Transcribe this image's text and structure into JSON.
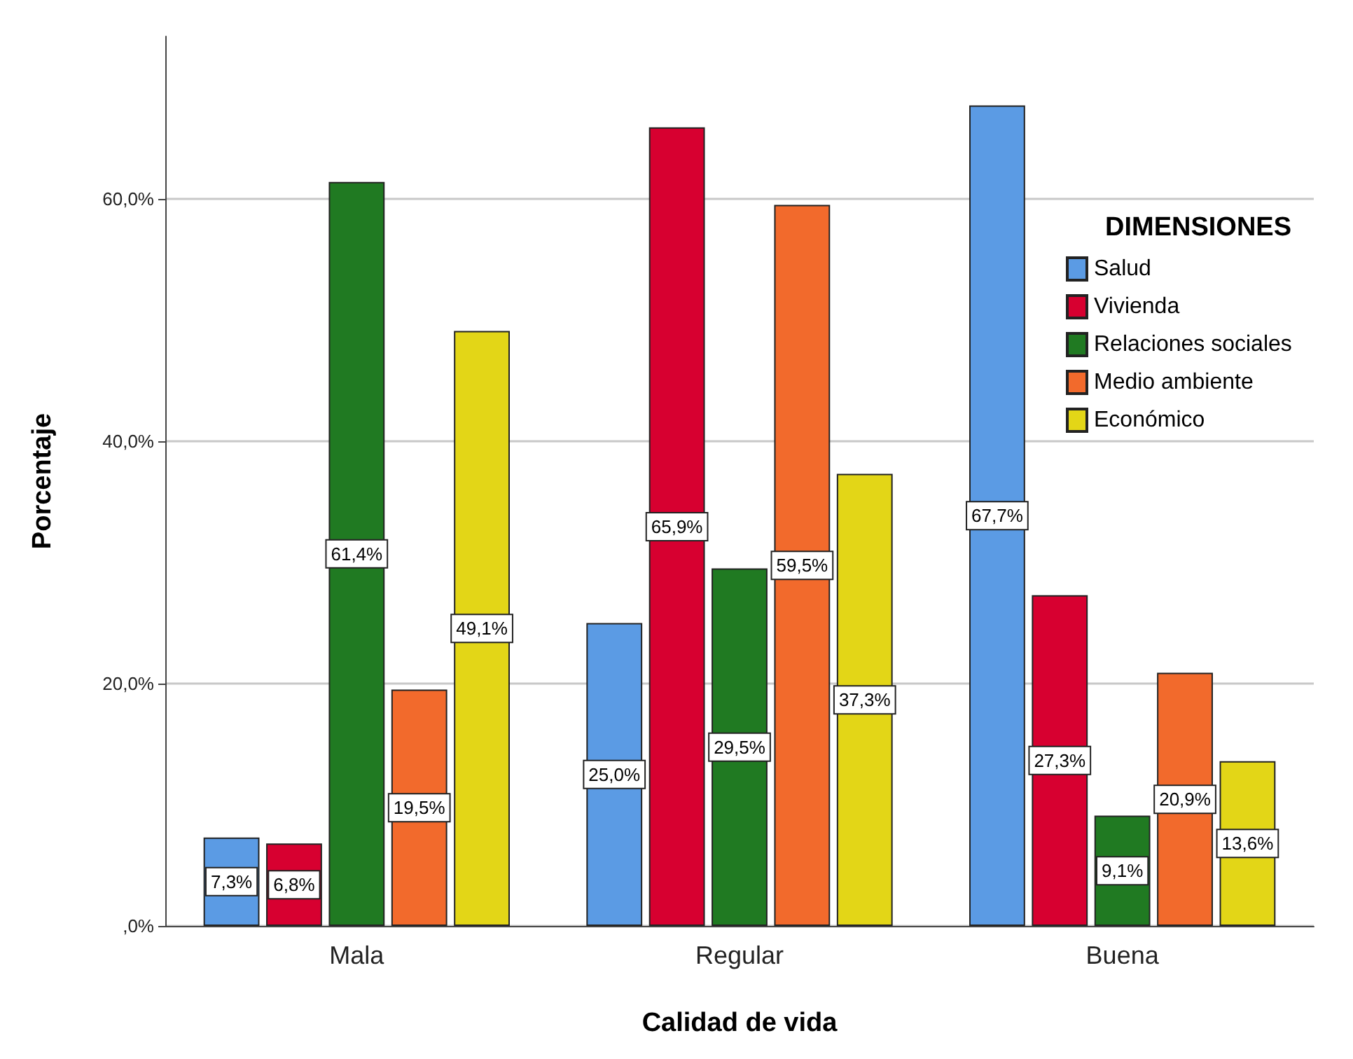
{
  "chart_data": {
    "type": "bar",
    "xlabel": "Calidad de vida",
    "ylabel": "Porcentaje",
    "legend_title": "DIMENSIONES",
    "categories": [
      "Mala",
      "Regular",
      "Buena"
    ],
    "series": [
      {
        "name": "Salud",
        "color": "#5b9be4",
        "values": [
          7.3,
          25.0,
          67.7
        ],
        "value_labels": [
          "7,3%",
          "25,0%",
          "67,7%"
        ]
      },
      {
        "name": "Vivienda",
        "color": "#d70030",
        "values": [
          6.8,
          65.9,
          27.3
        ],
        "value_labels": [
          "6,8%",
          "65,9%",
          "27,3%"
        ]
      },
      {
        "name": "Relaciones sociales",
        "color": "#207a22",
        "values": [
          61.4,
          29.5,
          9.1
        ],
        "value_labels": [
          "61,4%",
          "29,5%",
          "9,1%"
        ]
      },
      {
        "name": "Medio ambiente",
        "color": "#f26a2c",
        "values": [
          19.5,
          59.5,
          20.9
        ],
        "value_labels": [
          "19,5%",
          "59,5%",
          "20,9%"
        ]
      },
      {
        "name": "Económico",
        "color": "#e3d617",
        "values": [
          49.1,
          37.3,
          13.6
        ],
        "value_labels": [
          "49,1%",
          "37,3%",
          "13,6%"
        ]
      }
    ],
    "ylim": [
      0,
      73.4
    ],
    "yticks": [
      {
        "value": 0,
        "label": ",0%"
      },
      {
        "value": 20,
        "label": "20,0%"
      },
      {
        "value": 40,
        "label": "40,0%"
      },
      {
        "value": 60,
        "label": "60,0%"
      }
    ],
    "grid": "y",
    "legend": "right"
  }
}
